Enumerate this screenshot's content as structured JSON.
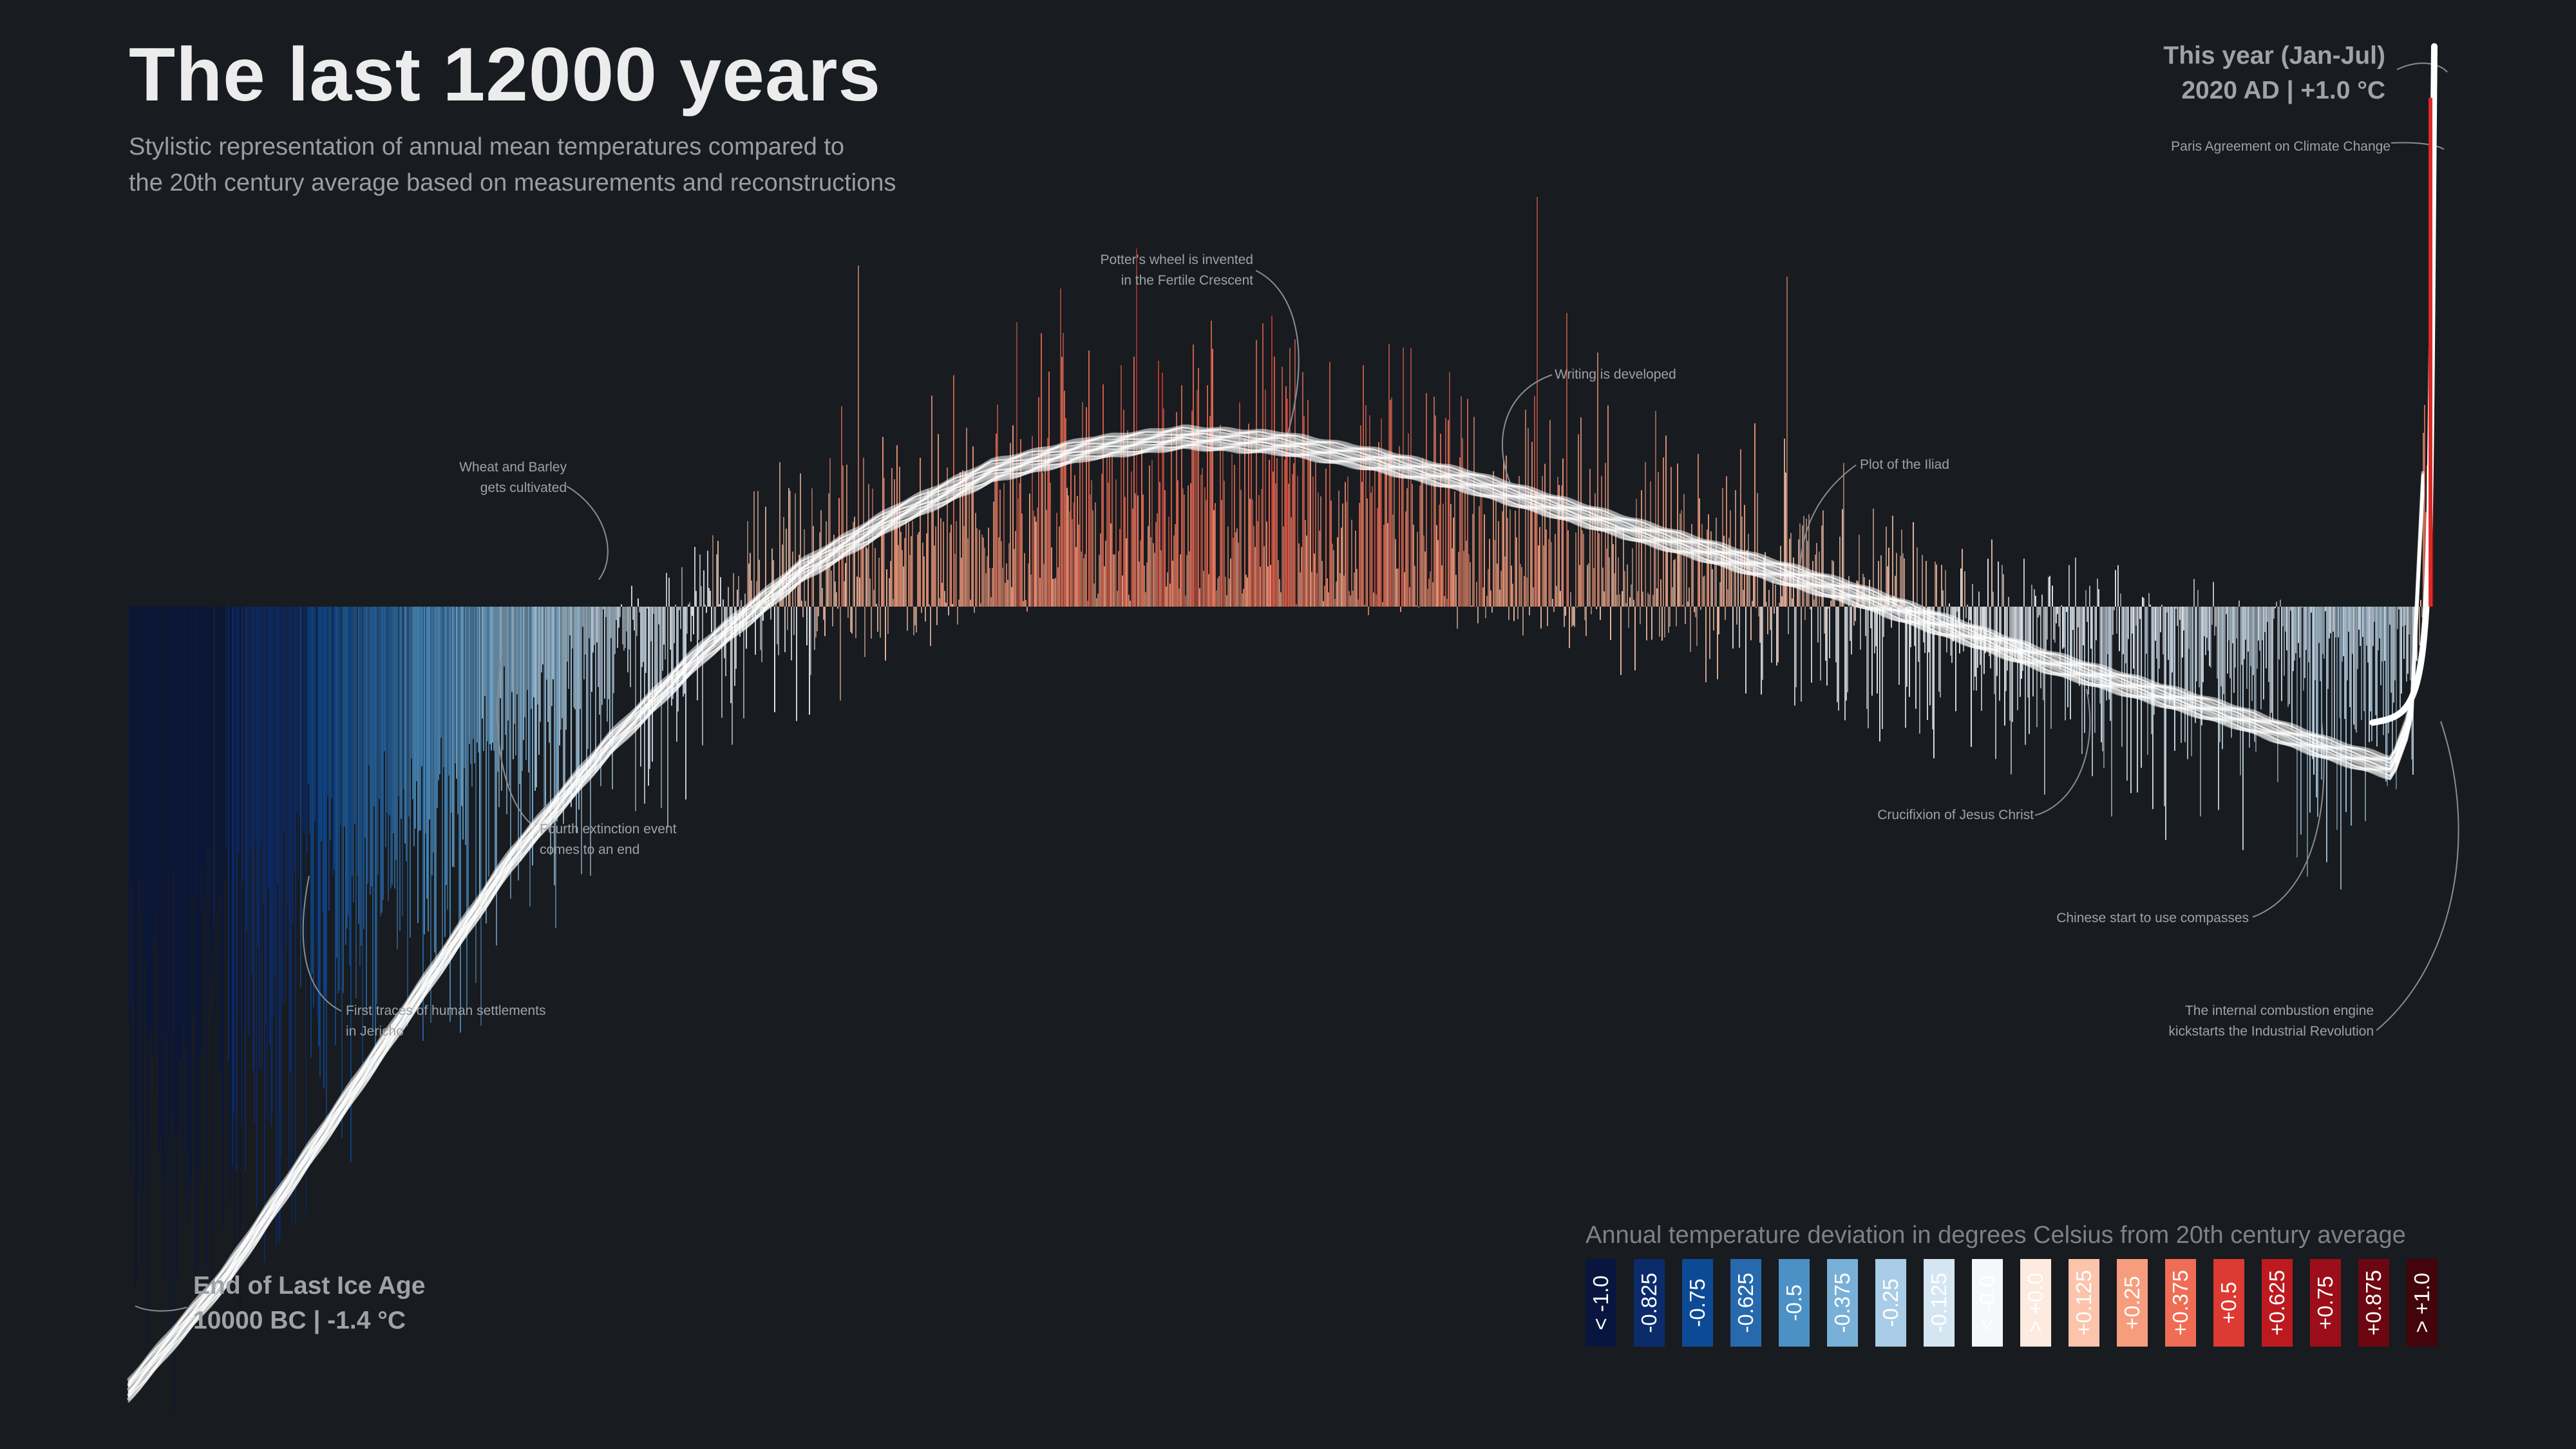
{
  "title": "The last 12000 years",
  "subtitle_lines": [
    "Stylistic representation of annual mean temperatures compared to",
    "the 20th century average based on measurements and reconstructions"
  ],
  "start_label": {
    "line1": "End of Last Ice Age",
    "line2": "10000 BC | -1.4 °C"
  },
  "end_label": {
    "line1": "This year (Jan-Jul)",
    "line2": "2020 AD | +1.0 °C"
  },
  "annotations": [
    {
      "lines": [
        "Paris Agreement on Climate Change"
      ]
    },
    {
      "lines": [
        "Potter's wheel is invented",
        "in the Fertile Crescent"
      ]
    },
    {
      "lines": [
        "Writing is developed"
      ]
    },
    {
      "lines": [
        "Wheat and Barley",
        "gets cultivated"
      ]
    },
    {
      "lines": [
        "Plot of the Iliad"
      ]
    },
    {
      "lines": [
        "Fourth extinction event",
        "comes to an end"
      ]
    },
    {
      "lines": [
        "Crucifixion of Jesus Christ"
      ]
    },
    {
      "lines": [
        "Chinese start to use compasses"
      ]
    },
    {
      "lines": [
        "First traces of human settlements",
        "in Jericho"
      ]
    },
    {
      "lines": [
        "The internal combustion engine",
        "kickstarts the Industrial Revolution"
      ]
    }
  ],
  "legend": {
    "title": "Annual temperature deviation in degrees Celsius from 20th century average",
    "items": [
      {
        "label": "< -1.0",
        "color": "#08163f"
      },
      {
        "label": "-0.825",
        "color": "#0b2b6b"
      },
      {
        "label": "-0.75",
        "color": "#0d4a95"
      },
      {
        "label": "-0.625",
        "color": "#2769ad"
      },
      {
        "label": "-0.5",
        "color": "#4b91c6"
      },
      {
        "label": "-0.375",
        "color": "#78b0d7"
      },
      {
        "label": "-0.25",
        "color": "#a9cde6"
      },
      {
        "label": "-0.125",
        "color": "#d5e6f3"
      },
      {
        "label": "< -0.0",
        "color": "#f5f8fb"
      },
      {
        "label": "> +0.0",
        "color": "#fdebe0"
      },
      {
        "label": "+0.125",
        "color": "#fbc4ab"
      },
      {
        "label": "+0.25",
        "color": "#f69d7e"
      },
      {
        "label": "+0.375",
        "color": "#ef6d55"
      },
      {
        "label": "+0.5",
        "color": "#dc3a32"
      },
      {
        "label": "+0.625",
        "color": "#bd1a20"
      },
      {
        "label": "+0.75",
        "color": "#9c0e19"
      },
      {
        "label": "+0.875",
        "color": "#6c0712"
      },
      {
        "label": "> +1.0",
        "color": "#43040b"
      }
    ]
  },
  "chart_data": {
    "type": "bar",
    "title": "The last 12000 years",
    "xlabel": "",
    "ylabel": "Annual temperature deviation in degrees Celsius from 20th century average",
    "x_range": [
      -10000,
      2020
    ],
    "ylim": [
      -1.4,
      1.0
    ],
    "x": [
      -10000,
      -9500,
      -9000,
      -8500,
      -8000,
      -7500,
      -7000,
      -6500,
      -6000,
      -5500,
      -5000,
      -4500,
      -4000,
      -3500,
      -3000,
      -2500,
      -2000,
      -1500,
      -1000,
      -500,
      0,
      500,
      1000,
      1500,
      1800,
      1900,
      2000,
      2020
    ],
    "values": [
      -1.4,
      -1.2,
      -0.95,
      -0.7,
      -0.45,
      -0.25,
      -0.08,
      0.06,
      0.16,
      0.24,
      0.28,
      0.3,
      0.29,
      0.26,
      0.22,
      0.17,
      0.12,
      0.07,
      0.02,
      -0.04,
      -0.1,
      -0.15,
      -0.2,
      -0.26,
      -0.29,
      -0.2,
      0.5,
      1.0
    ]
  }
}
